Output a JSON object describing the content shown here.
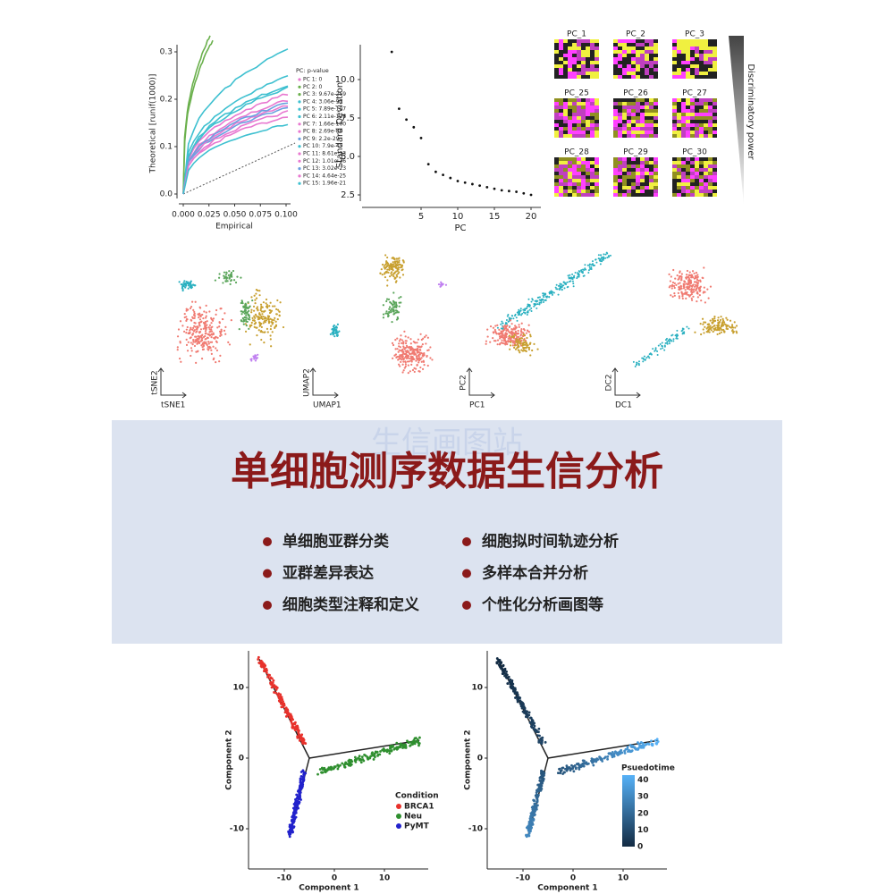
{
  "qq_plot": {
    "x_label": "Empirical",
    "y_label": "Theoretical [runif(1000)]",
    "xlim": [
      -0.005,
      0.105
    ],
    "ylim": [
      -0.01,
      0.31
    ],
    "xticks": [
      {
        "value": 0,
        "label": "0.000"
      },
      {
        "value": 0.025,
        "label": "0.025"
      },
      {
        "value": 0.05,
        "label": "0.050"
      },
      {
        "value": 0.075,
        "label": "0.075"
      },
      {
        "value": 0.1,
        "label": "0.100"
      }
    ],
    "yticks": [
      {
        "value": 0,
        "label": "0.0"
      },
      0.1,
      0.2,
      0.3
    ],
    "legend_title": "PC: p-value",
    "legend": [
      "PC 1: 0",
      "PC 2: 0",
      "PC 3: 9.67e-259",
      "PC 4: 3.06e-97",
      "PC 5: 7.89e-107",
      "PC 6: 2.11e-126",
      "PC 7: 1.66e-100",
      "PC 8: 2.69e-86",
      "PC 9: 2.2e-29",
      "PC 10: 7.9e-45",
      "PC 11: 8.61e-23",
      "PC 12: 1.01e-36",
      "PC 13: 3.02e-23",
      "PC 14: 4.64e-25",
      "PC 15: 1.96e-21"
    ]
  },
  "elbow_plot": {
    "type": "scatter",
    "x_label": "PC",
    "y_label": "Standard Deviation",
    "x": [
      1,
      2,
      3,
      4,
      5,
      6,
      7,
      8,
      9,
      10,
      11,
      12,
      13,
      14,
      15,
      16,
      17,
      18,
      19,
      20
    ],
    "values": [
      11.8,
      8.1,
      7.4,
      6.9,
      6.2,
      4.5,
      4.0,
      3.8,
      3.6,
      3.4,
      3.3,
      3.2,
      3.1,
      3.0,
      2.9,
      2.8,
      2.75,
      2.7,
      2.6,
      2.5
    ],
    "xlim": [
      -0.5,
      21
    ],
    "ylim": [
      1.9,
      12.4
    ],
    "xticks": [
      5,
      10,
      15,
      20
    ],
    "yticks": [
      2.5,
      {
        "value": 5,
        "label": "5.0"
      },
      7.5,
      {
        "value": 10,
        "label": "10.0"
      }
    ]
  },
  "heatmaps": {
    "titles": [
      "PC_1",
      "PC_2",
      "PC_3",
      "PC_25",
      "PC_26",
      "PC_27",
      "PC_28",
      "PC_29",
      "PC_30"
    ],
    "side_label": "Discriminatory power"
  },
  "embeddings": [
    {
      "x_label": "tSNE1",
      "y_label": "tSNE2"
    },
    {
      "x_label": "UMAP1",
      "y_label": "UMAP2"
    },
    {
      "x_label": "PC1",
      "y_label": "PC2"
    },
    {
      "x_label": "DC1",
      "y_label": "DC2"
    }
  ],
  "banner": {
    "watermark": "生信画图站",
    "title": "单细胞测序数据生信分析",
    "items": [
      "单细胞亚群分类",
      "细胞拟时间轨迹分析",
      "亚群差异表达",
      "多样本合并分析",
      "细胞类型注释和定义",
      "个性化分析画图等"
    ]
  },
  "trajectory": [
    {
      "x_label": "Component 1",
      "y_label": "Component 2",
      "xticks": [
        -10,
        0,
        10
      ],
      "yticks": [
        -10,
        0,
        10
      ],
      "legend_title": "Condition",
      "legend": [
        "BRCA1",
        "Neu",
        "PyMT"
      ],
      "colors": [
        "#e8322c",
        "#2f8f2f",
        "#2222cc"
      ]
    },
    {
      "x_label": "Component 1",
      "y_label": "Component 2",
      "xticks": [
        -10,
        0,
        10
      ],
      "yticks": [
        -10,
        0,
        10
      ],
      "colorbar_title": "Psuedotime",
      "colorbar_ticks": [
        0,
        10,
        20,
        30,
        40
      ],
      "colorbar_range": [
        0,
        43
      ]
    }
  ]
}
